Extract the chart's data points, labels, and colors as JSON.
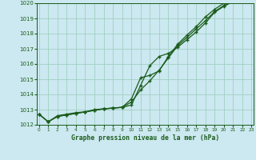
{
  "xlabel": "Graphe pression niveau de la mer (hPa)",
  "background_color": "#cce8f0",
  "grid_color": "#99ccbb",
  "line_color": "#1a5c1a",
  "xlim": [
    0,
    23
  ],
  "ylim": [
    1012,
    1020
  ],
  "yticks": [
    1012,
    1013,
    1014,
    1015,
    1016,
    1017,
    1018,
    1019,
    1020
  ],
  "xticks": [
    0,
    1,
    2,
    3,
    4,
    5,
    6,
    7,
    8,
    9,
    10,
    11,
    12,
    13,
    14,
    15,
    16,
    17,
    18,
    19,
    20,
    21,
    22,
    23
  ],
  "line1": [
    1012.7,
    1012.2,
    1012.6,
    1012.7,
    1012.8,
    1012.85,
    1013.0,
    1013.05,
    1013.1,
    1013.15,
    1013.3,
    1014.6,
    1015.9,
    1016.5,
    1016.7,
    1017.1,
    1017.6,
    1018.1,
    1018.7,
    1019.4,
    1019.8,
    1020.1,
    1020.1,
    1020.1
  ],
  "line2": [
    1012.7,
    1012.2,
    1012.55,
    1012.65,
    1012.75,
    1012.85,
    1012.95,
    1013.05,
    1013.1,
    1013.15,
    1013.5,
    1014.3,
    1014.9,
    1015.6,
    1016.4,
    1017.2,
    1017.75,
    1018.3,
    1018.85,
    1019.45,
    1019.85,
    1020.1,
    1020.2,
    1020.2
  ],
  "line3": [
    1012.7,
    1012.2,
    1012.55,
    1012.65,
    1012.75,
    1012.85,
    1012.95,
    1013.05,
    1013.1,
    1013.15,
    1013.7,
    1015.1,
    1015.25,
    1015.55,
    1016.5,
    1017.3,
    1017.9,
    1018.45,
    1019.1,
    1019.6,
    1020.0,
    1020.2,
    1020.2,
    1020.2
  ]
}
